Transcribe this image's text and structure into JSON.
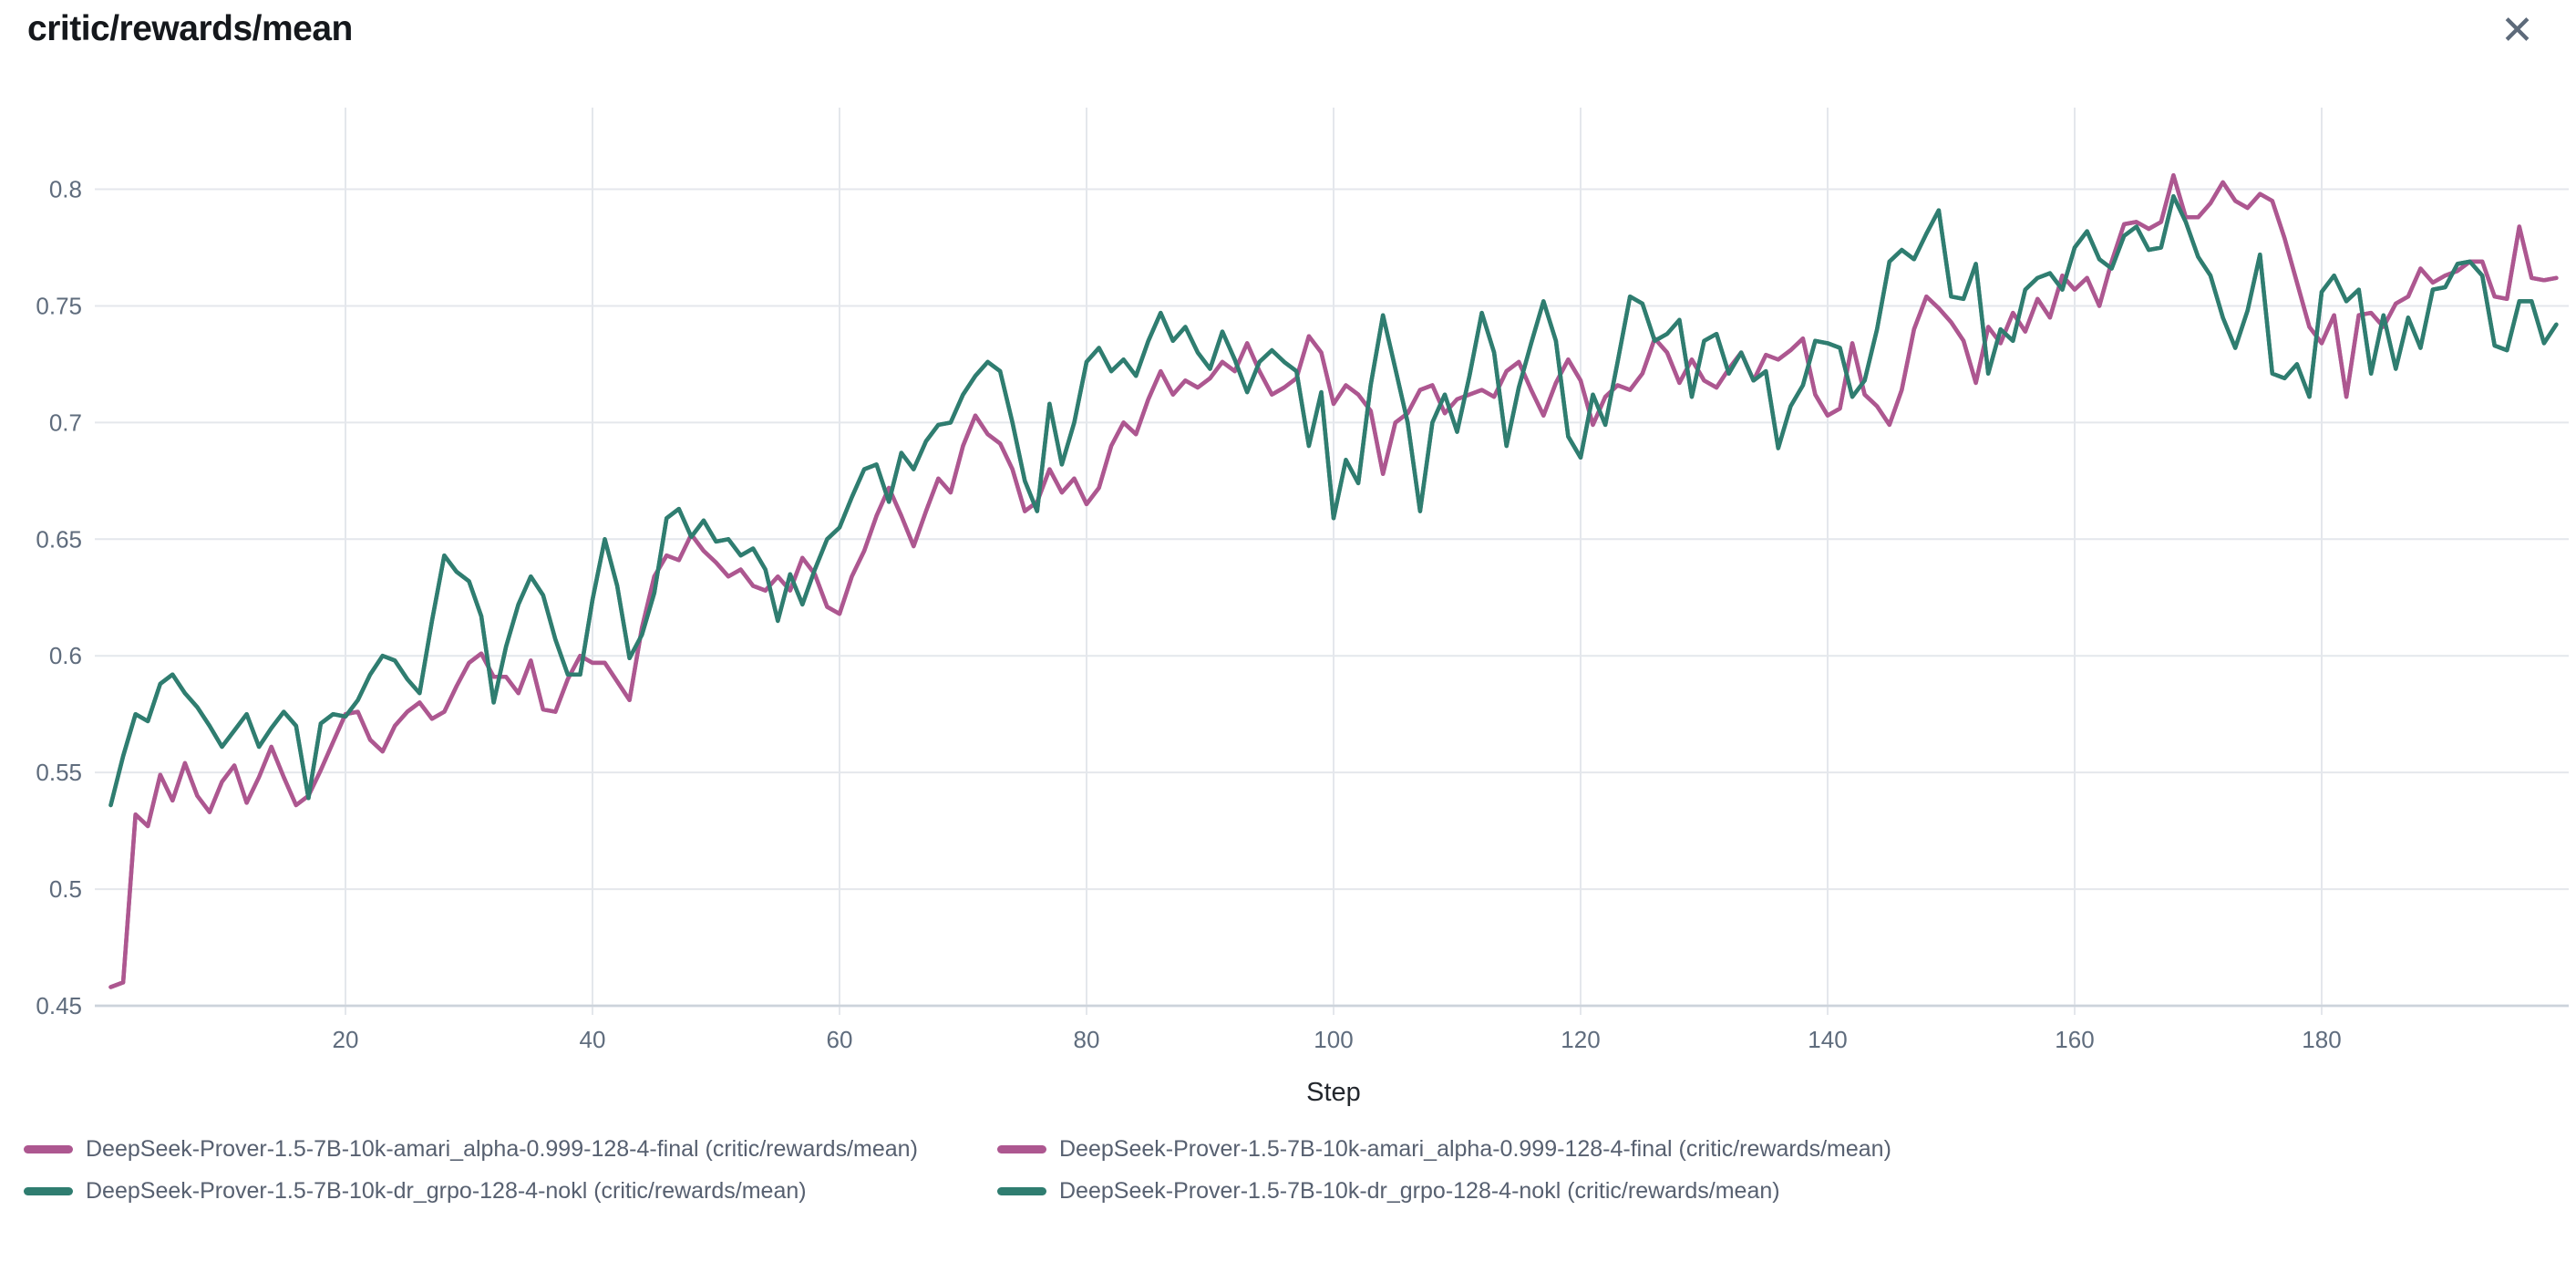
{
  "header": {
    "title": "critic/rewards/mean",
    "close_label": "✕"
  },
  "chart_data": {
    "type": "line",
    "title": "critic/rewards/mean",
    "xlabel": "Step",
    "ylabel": "",
    "xlim": [
      0,
      200
    ],
    "ylim": [
      0.45,
      0.835
    ],
    "x_ticks": [
      20,
      40,
      60,
      80,
      100,
      120,
      140,
      160,
      180
    ],
    "y_ticks": [
      0.45,
      0.5,
      0.55,
      0.6,
      0.65,
      0.7,
      0.75,
      0.8
    ],
    "grid": true,
    "legend_position": "bottom",
    "x": {
      "start": 1,
      "step": 1,
      "count": 199
    },
    "colors": {
      "pink": "#ad5790",
      "teal": "#2f7d70",
      "gridline": "#e4e7ec",
      "axis_line": "#ccd3db",
      "tick_text": "#5f6c7d"
    },
    "series": [
      {
        "name": "DeepSeek-Prover-1.5-7B-10k-amari_alpha-0.999-128-4-final (critic/rewards/mean)",
        "color": "#ad5790",
        "values": [
          0.458,
          0.46,
          0.532,
          0.527,
          0.549,
          0.538,
          0.554,
          0.54,
          0.533,
          0.546,
          0.553,
          0.537,
          0.548,
          0.561,
          0.548,
          0.536,
          0.54,
          0.551,
          0.563,
          0.575,
          0.576,
          0.564,
          0.559,
          0.57,
          0.576,
          0.58,
          0.573,
          0.576,
          0.587,
          0.597,
          0.601,
          0.591,
          0.591,
          0.584,
          0.598,
          0.577,
          0.576,
          0.59,
          0.6,
          0.597,
          0.597,
          0.589,
          0.581,
          0.612,
          0.634,
          0.643,
          0.641,
          0.652,
          0.645,
          0.64,
          0.634,
          0.637,
          0.63,
          0.628,
          0.634,
          0.628,
          0.642,
          0.635,
          0.621,
          0.618,
          0.634,
          0.645,
          0.66,
          0.672,
          0.66,
          0.647,
          0.662,
          0.676,
          0.67,
          0.69,
          0.703,
          0.695,
          0.691,
          0.68,
          0.662,
          0.666,
          0.68,
          0.67,
          0.676,
          0.665,
          0.672,
          0.69,
          0.7,
          0.695,
          0.71,
          0.722,
          0.712,
          0.718,
          0.715,
          0.719,
          0.726,
          0.722,
          0.734,
          0.722,
          0.712,
          0.715,
          0.719,
          0.737,
          0.73,
          0.708,
          0.716,
          0.712,
          0.705,
          0.678,
          0.7,
          0.704,
          0.714,
          0.716,
          0.704,
          0.71,
          0.712,
          0.714,
          0.711,
          0.722,
          0.726,
          0.714,
          0.703,
          0.717,
          0.727,
          0.718,
          0.699,
          0.711,
          0.716,
          0.714,
          0.721,
          0.736,
          0.73,
          0.717,
          0.727,
          0.718,
          0.715,
          0.723,
          0.73,
          0.718,
          0.729,
          0.727,
          0.731,
          0.736,
          0.712,
          0.703,
          0.706,
          0.734,
          0.712,
          0.707,
          0.699,
          0.714,
          0.74,
          0.754,
          0.749,
          0.743,
          0.735,
          0.717,
          0.741,
          0.734,
          0.747,
          0.739,
          0.753,
          0.745,
          0.763,
          0.757,
          0.762,
          0.75,
          0.769,
          0.785,
          0.786,
          0.783,
          0.786,
          0.806,
          0.788,
          0.788,
          0.794,
          0.803,
          0.795,
          0.792,
          0.798,
          0.795,
          0.779,
          0.76,
          0.741,
          0.734,
          0.746,
          0.711,
          0.746,
          0.747,
          0.741,
          0.751,
          0.754,
          0.766,
          0.76,
          0.763,
          0.765,
          0.769,
          0.769,
          0.754,
          0.753,
          0.784,
          0.762,
          0.761,
          0.762
        ]
      },
      {
        "name": "DeepSeek-Prover-1.5-7B-10k-amari_alpha-0.999-128-4-final (critic/rewards/mean)",
        "color": "#ad5790",
        "same_values_as": 0
      },
      {
        "name": "DeepSeek-Prover-1.5-7B-10k-dr_grpo-128-4-nokl (critic/rewards/mean)",
        "color": "#2f7d70",
        "values": [
          0.536,
          0.557,
          0.575,
          0.572,
          0.588,
          0.592,
          0.584,
          0.578,
          0.57,
          0.561,
          0.568,
          0.575,
          0.561,
          0.569,
          0.576,
          0.57,
          0.539,
          0.571,
          0.575,
          0.574,
          0.581,
          0.592,
          0.6,
          0.598,
          0.59,
          0.584,
          0.615,
          0.643,
          0.636,
          0.632,
          0.617,
          0.58,
          0.604,
          0.622,
          0.634,
          0.626,
          0.607,
          0.592,
          0.592,
          0.624,
          0.65,
          0.63,
          0.599,
          0.609,
          0.627,
          0.659,
          0.663,
          0.651,
          0.658,
          0.649,
          0.65,
          0.643,
          0.646,
          0.637,
          0.615,
          0.635,
          0.622,
          0.637,
          0.65,
          0.655,
          0.668,
          0.68,
          0.682,
          0.666,
          0.687,
          0.68,
          0.692,
          0.699,
          0.7,
          0.712,
          0.72,
          0.726,
          0.722,
          0.7,
          0.675,
          0.662,
          0.708,
          0.682,
          0.7,
          0.726,
          0.732,
          0.722,
          0.727,
          0.72,
          0.735,
          0.747,
          0.735,
          0.741,
          0.73,
          0.723,
          0.739,
          0.727,
          0.713,
          0.726,
          0.731,
          0.726,
          0.722,
          0.69,
          0.713,
          0.659,
          0.684,
          0.674,
          0.716,
          0.746,
          0.723,
          0.7,
          0.662,
          0.7,
          0.712,
          0.696,
          0.72,
          0.747,
          0.73,
          0.69,
          0.715,
          0.734,
          0.752,
          0.735,
          0.694,
          0.685,
          0.712,
          0.699,
          0.726,
          0.754,
          0.751,
          0.735,
          0.738,
          0.744,
          0.711,
          0.735,
          0.738,
          0.721,
          0.73,
          0.718,
          0.722,
          0.689,
          0.707,
          0.716,
          0.735,
          0.734,
          0.732,
          0.711,
          0.718,
          0.74,
          0.769,
          0.774,
          0.77,
          0.781,
          0.791,
          0.754,
          0.753,
          0.768,
          0.721,
          0.74,
          0.735,
          0.757,
          0.762,
          0.764,
          0.757,
          0.775,
          0.782,
          0.77,
          0.766,
          0.78,
          0.784,
          0.774,
          0.775,
          0.797,
          0.786,
          0.771,
          0.763,
          0.745,
          0.732,
          0.748,
          0.772,
          0.721,
          0.719,
          0.725,
          0.711,
          0.756,
          0.763,
          0.752,
          0.757,
          0.721,
          0.746,
          0.723,
          0.745,
          0.732,
          0.757,
          0.758,
          0.768,
          0.769,
          0.763,
          0.733,
          0.731,
          0.752,
          0.752,
          0.734,
          0.742
        ]
      },
      {
        "name": "DeepSeek-Prover-1.5-7B-10k-dr_grpo-128-4-nokl (critic/rewards/mean)",
        "color": "#2f7d70",
        "same_values_as": 2
      }
    ]
  }
}
